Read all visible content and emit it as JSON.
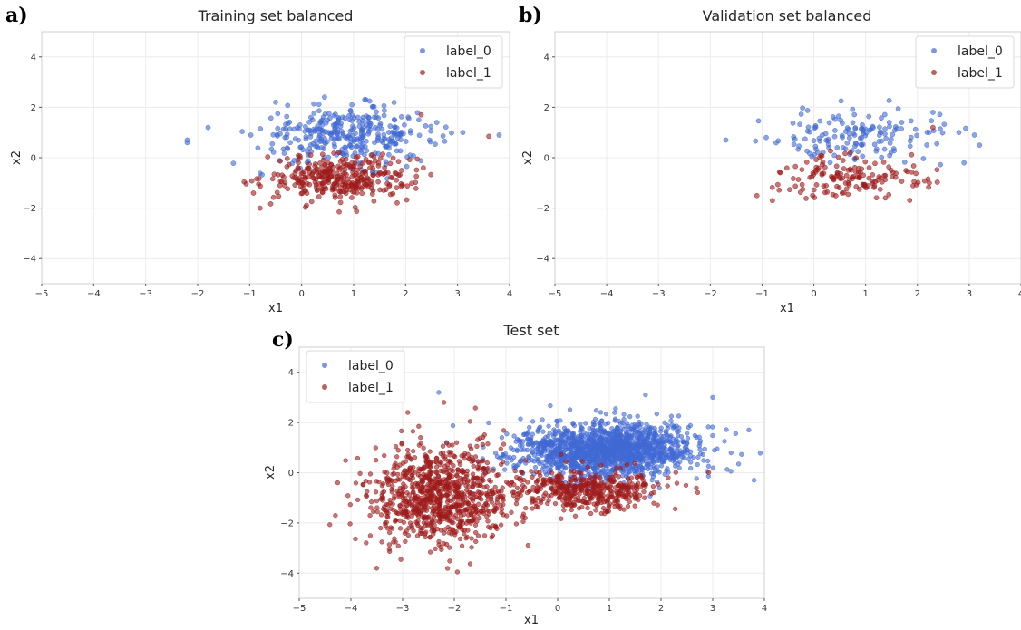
{
  "panels": [
    {
      "letter": "a)",
      "chart_data": {
        "type": "scatter",
        "title": "Training set balanced",
        "xlabel": "x1",
        "ylabel": "x2",
        "xlim": [
          -5,
          4
        ],
        "ylim": [
          -5,
          5
        ],
        "xticks": [
          -5,
          -4,
          -3,
          -2,
          -1,
          0,
          1,
          2,
          3,
          4
        ],
        "yticks": [
          -4,
          -2,
          0,
          2,
          4
        ],
        "grid": true,
        "legend_position": "top-right",
        "series": [
          {
            "name": "label_0",
            "color": "#4169d4",
            "n": 330,
            "cluster": {
              "mean": [
                0.9,
                0.9
              ],
              "std": [
                0.85,
                0.55
              ]
            },
            "extra_points": [
              [
                -2.2,
                0.7
              ],
              [
                -2.2,
                0.6
              ],
              [
                -1.8,
                1.2
              ],
              [
                3.1,
                1.0
              ],
              [
                3.8,
                0.9
              ],
              [
                -0.5,
                2.2
              ],
              [
                2.6,
                1.4
              ]
            ]
          },
          {
            "name": "label_1",
            "color": "#9e1b1b",
            "n": 330,
            "cluster": {
              "mean": [
                0.7,
                -0.8
              ],
              "std": [
                0.7,
                0.45
              ]
            },
            "extra_points": [
              [
                3.6,
                0.85
              ],
              [
                -0.8,
                -2.0
              ],
              [
                2.3,
                1.7
              ]
            ]
          }
        ]
      }
    },
    {
      "letter": "b)",
      "chart_data": {
        "type": "scatter",
        "title": "Validation set balanced",
        "xlabel": "x1",
        "ylabel": "x2",
        "xlim": [
          -5,
          4
        ],
        "ylim": [
          -5,
          5
        ],
        "xticks": [
          -5,
          -4,
          -3,
          -2,
          -1,
          0,
          1,
          2,
          3,
          4
        ],
        "yticks": [
          -4,
          -2,
          0,
          2,
          4
        ],
        "grid": true,
        "legend_position": "top-right",
        "series": [
          {
            "name": "label_0",
            "color": "#4169d4",
            "n": 150,
            "cluster": {
              "mean": [
                0.9,
                0.8
              ],
              "std": [
                0.85,
                0.55
              ]
            },
            "extra_points": [
              [
                -1.7,
                0.7
              ],
              [
                2.8,
                1.0
              ],
              [
                3.2,
                0.5
              ],
              [
                3.1,
                0.9
              ],
              [
                2.3,
                1.8
              ],
              [
                2.9,
                -0.2
              ]
            ]
          },
          {
            "name": "label_1",
            "color": "#9e1b1b",
            "n": 150,
            "cluster": {
              "mean": [
                0.8,
                -0.75
              ],
              "std": [
                0.65,
                0.45
              ]
            },
            "extra_points": [
              [
                -1.1,
                -1.5
              ],
              [
                -0.8,
                -1.7
              ],
              [
                2.3,
                1.2
              ]
            ]
          }
        ]
      }
    },
    {
      "letter": "c)",
      "chart_data": {
        "type": "scatter",
        "title": "Test set",
        "xlabel": "x1",
        "ylabel": "x2",
        "xlim": [
          -5,
          4
        ],
        "ylim": [
          -5,
          5
        ],
        "xticks": [
          -5,
          -4,
          -3,
          -2,
          -1,
          0,
          1,
          2,
          3,
          4
        ],
        "yticks": [
          -4,
          -2,
          0,
          2,
          4
        ],
        "grid": true,
        "legend_position": "top-left",
        "series": [
          {
            "name": "label_0",
            "color": "#4169d4",
            "n": 1500,
            "cluster": {
              "mean": [
                0.9,
                0.9
              ],
              "std": [
                0.9,
                0.55
              ]
            },
            "extra_points": [
              [
                -2.3,
                3.2
              ],
              [
                3.7,
                1.7
              ],
              [
                3.8,
                -0.3
              ],
              [
                3.0,
                3.0
              ],
              [
                1.7,
                3.1
              ]
            ]
          },
          {
            "name": "label_1",
            "color": "#9e1b1b",
            "n": 1350,
            "clusters": [
              {
                "mean": [
                  -2.3,
                  -0.9
                ],
                "std": [
                  0.65,
                  1.0
                ],
                "n": 900
              },
              {
                "mean": [
                  0.6,
                  -0.7
                ],
                "std": [
                  0.75,
                  0.4
                ],
                "n": 450
              }
            ],
            "extra_points": [
              [
                -2.9,
                2.4
              ],
              [
                -3.5,
                -3.8
              ],
              [
                -4.3,
                -1.7
              ],
              [
                -2.2,
                2.8
              ]
            ]
          }
        ]
      }
    }
  ]
}
